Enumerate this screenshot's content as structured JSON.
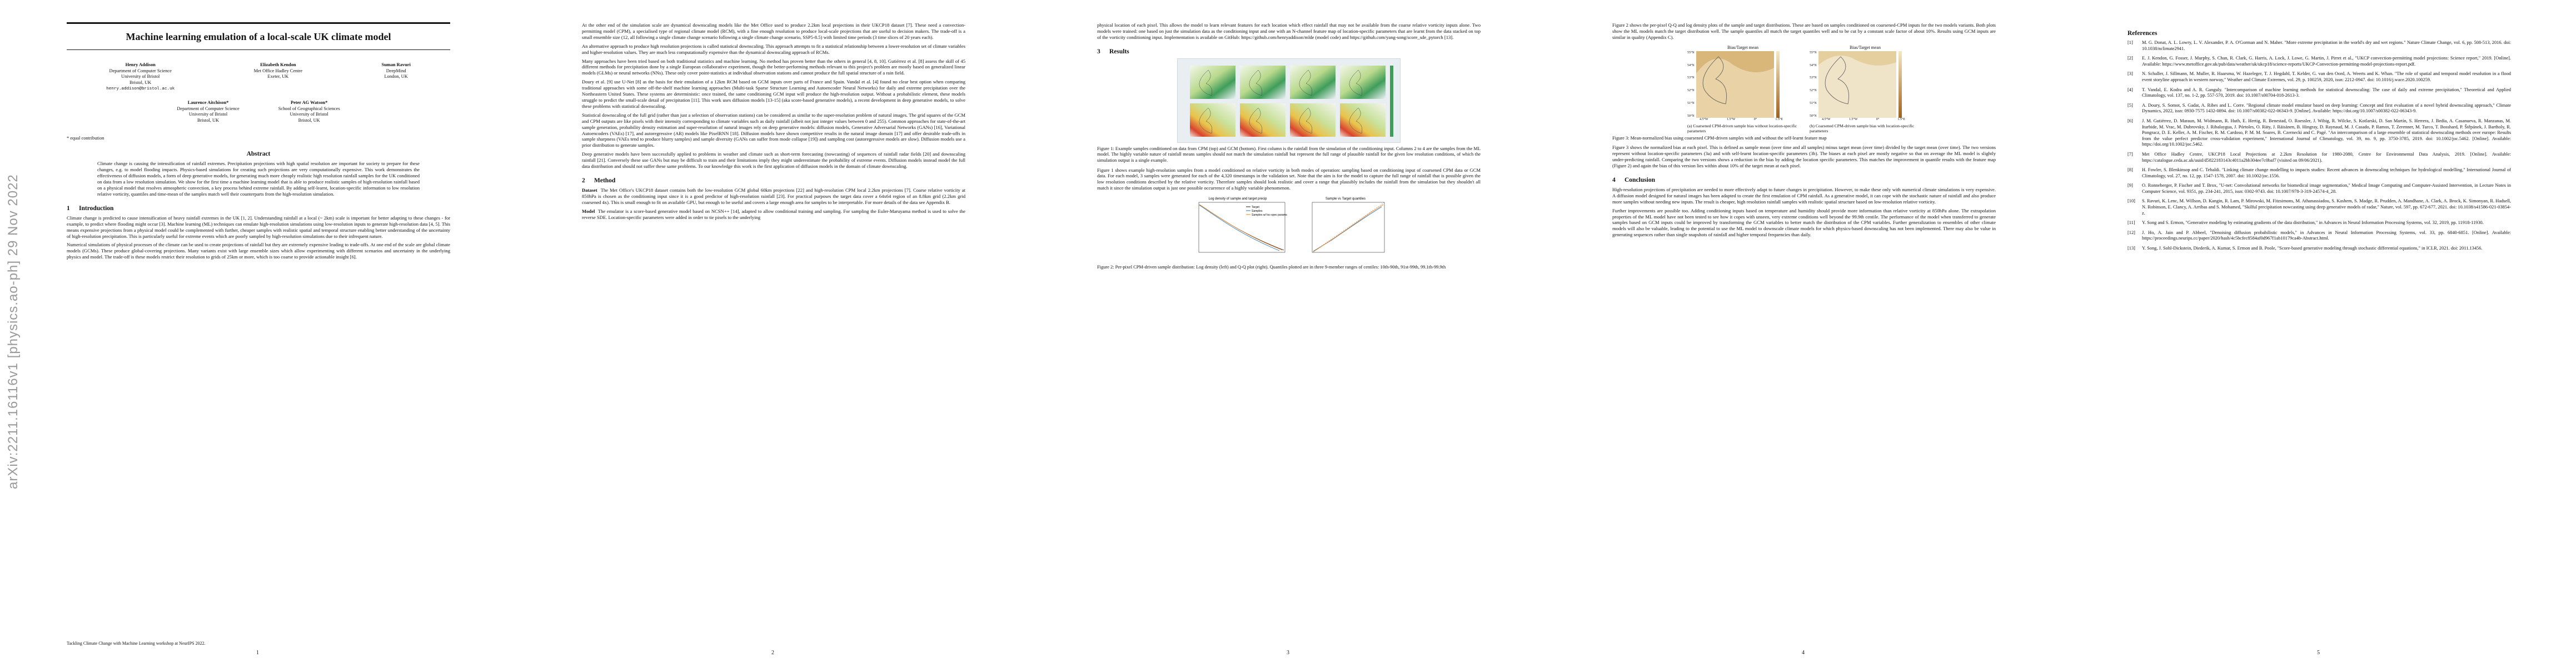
{
  "arxiv_stamp": "arXiv:2211.16116v1  [physics.ao-ph]  29 Nov 2022",
  "page1": {
    "title": "Machine learning emulation of a local-scale UK climate model",
    "authors_row1": [
      {
        "name": "Henry Addison",
        "line1": "Department of Computer Science",
        "line2": "University of Bristol",
        "line3": "Bristol, UK",
        "line4": "henry.addison@bristol.ac.uk"
      },
      {
        "name": "Elizabeth Kendon",
        "line1": "Met Office Hadley Centre",
        "line2": "Exeter, UK",
        "line3": "",
        "line4": ""
      },
      {
        "name": "Suman Ravuri",
        "line1": "DeepMind",
        "line2": "London, UK",
        "line3": "",
        "line4": ""
      }
    ],
    "authors_row2": [
      {
        "name": "Laurence Aitchison*",
        "line1": "Department of Computer Science",
        "line2": "University of Bristol",
        "line3": "Bristol, UK"
      },
      {
        "name": "Peter AG Watson*",
        "line1": "School of Geographical Sciences",
        "line2": "University of Bristol",
        "line3": "Bristol, UK"
      }
    ],
    "equal_contribution": "* equal contribution",
    "abstract_heading": "Abstract",
    "abstract": "Climate change is causing the intensification of rainfall extremes. Precipitation projections with high spatial resolution are important for society to prepare for these changes, e.g. to model flooding impacts. Physics-based simulations for creating such projections are very computationally expensive. This work demonstrates the effectiveness of diffusion models, a form of deep generative models, for generating much more cheaply realistic high resolution rainfall samples for the UK conditioned on data from a low resolution simulation. We show for the first time a machine learning model that is able to produce realistic samples of high-resolution rainfall based on a physical model that resolves atmospheric convection, a key process behind extreme rainfall. By adding self-learnt, location-specific information to low resolution relative vorticity, quantiles and time-mean of the samples match well their counterparts from the high-resolution simulation.",
    "intro_num": "1",
    "intro_heading": "Introduction",
    "intro_p1": "Climate change is predicted to cause intensification of heavy rainfall extremes in the UK [1, 2]. Understanding rainfall at a local (~ 2km) scale is important for better adapting to these changes - for example, to predict where flooding might occur [3]. Machine learning (ML) techniques can emulate high-resolution simulations using low-resolution inputs to generate high-resolution data [4, 5]. This means expensive projections from a physical model could be complemented with further, cheaper samples with realistic spatial and temporal structure enabling better understanding of the uncertainty of high-resolution precipitation. This is particularly useful for extreme events which are poorly sampled by high-resolution simulations due to their infrequent nature.",
    "intro_p2": "Numerical simulations of physical processes of the climate can be used to create projections of rainfall but they are extremely expensive leading to trade-offs. At one end of the scale are global climate models (GCMs). These produce global-covering projections. Many variants exist with large ensemble sizes which allow experimenting with different scenarios and uncertainty in the underlying physics and model. The trade-off is these models restrict their resolution to grids of 25km or more, which is too coarse to provide actionable insight [6].",
    "footer": "Tackling Climate Change with Machine Learning workshop at NeurIPS 2022.",
    "page_number": "1"
  },
  "page2": {
    "p1": "At the other end of the simulation scale are dynamical downscaling models like the Met Office used to produce 2.2km local projections in their UKCP18 dataset [7]. These need a convection-permitting model (CPM), a specialised type of regional climate model (RCM), with a fine enough resolution to produce local-scale projections that are useful to decision makers. The trade-off is a small ensemble size (12, all following a single climate change scenario following a single climate change scenario, SSP5-8.5) with limited time periods (3 time slices of 20 years each).",
    "p2": "An alternative approach to produce high resolution projections is called statistical downscaling. This approach attempts to fit a statistical relationship between a lower-resolution set of climate variables and higher-resolution values. They are much less computationally expensive than the dynamical downscaling approach of RCMs.",
    "p3": "Many approaches have been tried based on both traditional statistics and machine learning. No method has proven better than the others in general [4, 8, 10]. Gutiérrez et al. [8] assess the skill of 45 different methods for precipitation done by a single European collaborative experiment, though the better-performing methods relevant to this project's problem are mostly based on generalized linear models (GLMs) or neural networks (NNs). These only cover point-statistics at individual observation stations and cannot produce the full spatial structure of a rain field.",
    "p4": "Doury et al. [9] use U-Net [8] as the basis for their emulation of a 12km RCM based on GCM inputs over parts of France and Spain. Vandal et al. [4] found no clear best option when comparing traditional approaches with some off-the-shelf machine learning approaches (Multi-task Sparse Structure Learning and Autoencoder Neural Networks) for daily and extreme precipitation over the Northeastern United States. These systems are deterministic: once trained, the same conditioning GCM input will produce the high-resolution output. Without a probabilistic element, these models struggle to predict the small-scale detail of precipitation [11]. This work uses diffusion models [13-15] (aka score-based generative models), a recent development in deep generative models, to solve these problems with statistical downscaling.",
    "p5": "Statistical downscaling of the full grid (rather than just a selection of observation stations) can be considered as similar to the super-resolution problem of natural images. The grid squares of the GCM and CPM outputs are like pixels with their intensity corresponding to climate variables such as daily rainfall (albeit not just integer values between 0 and 255). Common approaches for state-of-the-art sample generation, probability density estimation and super-resolution of natural images rely on deep generative models: diffusion models, Generative Adversarial Networks (GANs) [16], Variational Autoencoders (VAEs) [17], and autoregressive (AR) models like PixelRNN [18]. Diffusion models have shown competitive results in the natural image domain [17] and offer desirable trade-offs in sample sharpness (VAEs tend to produce blurry samples) and sample diversity (GANs can suffer from mode collapse [19]) and sampling cost (autoregressive models are slow). Diffusion models use a prior distribution to generate samples.",
    "p6": "Deep generative models have been successfully applied to problems in weather and climate such as short-term forecasting (nowcasting) of sequences of rainfall radar fields [20] and downscaling rainfall [21]. Conversely these use GANs but may be difficult to train and their limitations imply they might underestimate the probability of extreme events. Diffusion models instead model the full data distribution and should not suffer these same problems. To our knowledge this work is the first application of diffusion models in the domain of climate downscaling.",
    "method_num": "2",
    "method_heading": "Method",
    "p7_label": "Dataset",
    "p7": "The Met Office's UKCP18 dataset contains both the low-resolution GCM global 60km projections [22] and high-resolution CPM local 2.2km projections [7]. Coarse relative vorticity at 850hPa is chosen as the conditioning input since it is a good predictor of high-resolution rainfall [23]. For practical purposes the target data cover a 64x64 region of an 8.8km grid (2.2km grid coarsened 4x). This is small enough to fit on available GPU, but enough to be useful and covers a large enough area for samples to be interpretable. For more details of the data see Appendix B.",
    "p8_label": "Model",
    "p8": "The emulator is a score-based generative model based on NCSN++ [14], adapted to allow conditional training and sampling. For sampling the Euler-Maruyama method is used to solve the reverse SDE. Location-specific parameters were added in order to tie pixels to the underlying",
    "page_number": "2"
  },
  "page3": {
    "p1": "physical location of each pixel. This allows the model to learn relevant features for each location which effect rainfall that may not be available from the coarse relative vorticity inputs alone. Two models were trained: one based on just the simulation data as the conditioning input and one with an N-channel feature map of location-specific parameters that are learnt from the data stacked on top of the vorticity conditioning input. Implementation is available on GitHub: https://github.com/henryaddison/mlde (model code) and https://github.com/yang-song/score_sde_pytorch [13].",
    "results_num": "3",
    "results_heading": "Results",
    "fig1_caption": "Figure 1: Example samples conditioned on data from CPM (top) and GCM (bottom). First column is the rainfall from the simulation of the conditioning input. Columns 2 to 4 are the samples from the ML model. The highly variable nature of rainfall means samples should not match the simulation rainfall but represent the full range of plausible rainfall for the given low resolution conditions, of which the simulation output is a single example.",
    "p2": "Figure 1 shows example high-resolution samples from a model conditioned on relative vorticity in both modes of operation: sampling based on conditioning input of coarsened CPM data or GCM data. For each model, 3 samples were generated for each of the 4,320 timestamps in the validation set. Note that the aim is for the model to capture the full range of rainfall that is possible given the low resolution conditions described by the relative vorticity. Therefore samples should look realistic and cover a range that plausibly includes the rainfall from the simulation but they shouldn't all match it since the simulation output is just one possible occurrence of a highly variable phenomenon.",
    "fig2_left_title": "Log density of sample and target precip",
    "fig2_right_title": "Sample vs Target quantiles",
    "fig2_left_legend": [
      "Target",
      "Samples",
      "Samples w/ loc-spec params"
    ],
    "fig2_caption": "Figure 2: Per-pixel CPM-driven sample distribution: Log density (left) and Q-Q plot (right). Quantiles plotted are in three 9-member ranges of centiles: 10th-90th, 91st-99th, 99.1th-99.9th",
    "page_number": "3"
  },
  "page4": {
    "p1": "Figure 2 shows the per-pixel Q-Q and log density plots of the sample and target distributions. These are based on samples conditioned on coarsened-CPM inputs for the two models variants. Both plots show the ML models match the target distribution well. The sample quantiles all match the target quantiles well and to be cut by a constant scale factor of about 10%. Results using GCM inputs are similar in quality (Appendix C).",
    "fig3_title_a": "Bias/Target mean",
    "fig3_title_b": "Bias/Target mean",
    "fig3_lat_ticks": [
      "55°N",
      "54°N",
      "53°N",
      "52°N",
      "51°N",
      "50°N"
    ],
    "fig3_lon_ticks": [
      "4.5°W",
      "1.5°W",
      "0°",
      "1.5°E"
    ],
    "fig3_sub_a": "(a) Coarsened CPM-driven sample bias without location-specific parameters",
    "fig3_sub_b": "(b) Coarsened CPM-driven sample bias with location-specific parameters",
    "fig3_caption": "Figure 3: Mean-normalized bias using coarsened CPM-driven samples with and without the self-learnt feature map",
    "p2": "Figure 3 shows the normalized bias at each pixel. This is defined as sample mean (over time and all samples) minus target mean (over time) divided by the target mean (over time). The two versions represent without location-specific parameters (3a) and with self-learnt location-specific parameters (3b). The biases at each pixel are mostly negative so that on average the ML model is slightly under-predicting rainfall. Comparing the two versions shows a reduction in the bias by adding the location specific parameters. This matches the improvement in quantile results with the feature map (Figure 2) and again the bias of this version lies within about 10% of the target mean at each pixel.",
    "conclusion_num": "4",
    "conclusion_heading": "Conclusion",
    "p3": "High-resolution projections of precipitation are needed to more effectively adapt to future changes in precipitation. However, to make these only with numerical climate simulations is very expensive. A diffusion model designed for natural images has been adapted to create the first emulation of CPM rainfall. As a generative model, it can cope with the stochastic nature of rainfall and also produce more samples without needing new inputs. The result is cheaper, high resolution rainfall samples with realistic spatial structure based on low-resolution relative vorticity.",
    "p4": "Further improvements are possible too. Adding conditioning inputs based on temperature and humidity should provide more information than relative vorticity at 850hPa alone. The extrapolation properties of the ML model have not been tested to see how it copes with unseen, very extreme conditions well beyond the 99.9th centile. The performance of the model when transferred to generate samples based on GCM inputs could be improved by transforming the GCM variables to better match the distribution of the CPM variables. Further generalization to ensembles of other climate models will also be valuable, leading to the potential to use the ML model to downscale climate models for which physics-based downscaling has not been implemented. There may also be value in generating sequences rather than single snapshots of rainfall and higher temporal frequencies than daily.",
    "page_number": "4"
  },
  "page5": {
    "references_heading": "References",
    "refs": [
      {
        "n": "[1]",
        "text": "M. G. Donat, A. L. Lowry, L. V. Alexander, P. A. O'Gorman and N. Maher. \"More extreme precipitation in the world's dry and wet regions.\" Nature Climate Change, vol. 6, pp. 508-513, 2016. doi: 10.1038/nclimate2941."
      },
      {
        "n": "[2]",
        "text": "E. J. Kendon, G. Fosser, J. Murphy, S. Chan, R. Clark, G. Harris, A. Lock, J. Lowe, G. Martin, J. Pirret et al., \"UKCP convection-permitting model projections: Science report,\" 2019. [Online]. Available: https://www.metoffice.gov.uk/pub/data/weather/uk/ukcp18/science-reports/UKCP-Convection-permitting-model-projections-report.pdf."
      },
      {
        "n": "[3]",
        "text": "N. Schaller, J. Sillmann, M. Muller, R. Haarsma, W. Hazeleger, T. J. Hegdahl, T. Kelder, G. van den Oord, A. Weerts and K. Whan. \"The role of spatial and temporal model resolution in a flood event storyline approach in western norway,\" Weather and Climate Extremes, vol. 29, p. 100259, 2020, issn: 2212-0947. doi: 10.1016/j.wace.2020.100259."
      },
      {
        "n": "[4]",
        "text": "T. Vandal, E. Kodra and A. R. Ganguly. \"Intercomparison of machine learning methods for statistical downscaling: The case of daily and extreme precipitation,\" Theoretical and Applied Climatology, vol. 137, no. 1-2, pp. 557-570, 2019. doi: 10.1007/s00704-018-2613-3."
      },
      {
        "n": "[5]",
        "text": "A. Doury, S. Somot, S. Gadat, A. Ribes and L. Corre. \"Regional climate model emulator based on deep learning: Concept and first evaluation of a novel hybrid downscaling approach,\" Climate Dynamics, 2022, issn: 0930-7575 1432-0894. doi: 10.1007/s00382-022-06343-9. [Online]. Available: https://doi.org/10.1007/s00382-022-06343-9."
      },
      {
        "n": "[6]",
        "text": "J. M. Gutiérrez, D. Maraun, M. Widmann, R. Huth, E. Hertig, R. Benestad, O. Roessler, J. Wibig, R. Wilcke, S. Kotlarski, D. San Martín, S. Herrera, J. Bedia, A. Casanueva, R. Manzanas, M. Iturbide, M. Vrac, M. Dubrovsky, J. Ribalaygua, J. Pórtoles, O. Räty, J. Räisänen, B. Hingray, D. Raynaud, M. J. Casado, P. Ramos, T. Zerenner, M. Turco, T. Bosshard, P. Štěpánek, J. Bartholy, R. Pongracz, D. E. Keller, A. M. Fischer, R. M. Cardoso, P. M. M. Soares, B. Czernecki and C. Pagé. \"An intercomparison of a large ensemble of statistical downscaling methods over europe: Results from the value perfect predictor cross-validation experiment,\" International Journal of Climatology, vol. 39, no. 9, pp. 3750-3785, 2019. doi: 10.1002/joc.5462. [Online]. Available: https://doi.org/10.1002/joc.5462."
      },
      {
        "n": "[7]",
        "text": "Met Office Hadley Centre, UKCP18 Local Projections at 2.2km Resolution for 1980-2080, Centre for Environmental Data Analysis, 2019. [Online]. Available: https://catalogue.ceda.ac.uk/uuid/d5822183143c4011a2bb304ee7c0baf7 (visited on 09/06/2021)."
      },
      {
        "n": "[8]",
        "text": "H. Fowler, S. Blenkinsop and C. Tebaldi. \"Linking climate change modelling to impacts studies: Recent advances in downscaling techniques for hydrological modelling,\" International Journal of Climatology, vol. 27, no. 12, pp. 1547-1578, 2007. doi: 10.1002/joc.1556."
      },
      {
        "n": "[9]",
        "text": "O. Ronneberger, P. Fischer and T. Brox, \"U-net: Convolutional networks for biomedical image segmentation,\" Medical Image Computing and Computer-Assisted Intervention, in Lecture Notes in Computer Science, vol. 9351, pp. 234-241, 2015, issn: 0302-9743. doi: 10.1007/978-3-319-24574-4_28."
      },
      {
        "n": "[10]",
        "text": "S. Ravuri, K. Lenc, M. Willson, D. Kangin, R. Lam, P. Mirowski, M. Fitzsimons, M. Athanassiadou, S. Kashem, S. Madge, R. Prudden, A. Mandhane, A. Clark, A. Brock, K. Simonyan, R. Hadsell, N. Robinson, E. Clancy, A. Arribas and S. Mohamed, \"Skilful precipitation nowcasting using deep generative models of radar,\" Nature, vol. 597, pp. 672-677, 2021. doi: 10.1038/s41586-021-03854-z."
      },
      {
        "n": "[11]",
        "text": "Y. Song and S. Ermon, \"Generative modeling by estimating gradients of the data distribution,\" in Advances in Neural Information Processing Systems, vol. 32, 2019, pp. 11918-11930."
      },
      {
        "n": "[12]",
        "text": "J. Ho, A. Jain and P. Abbeel, \"Denoising diffusion probabilistic models,\" in Advances in Neural Information Processing Systems, vol. 33, pp. 6840-6851. [Online]. Available: https://proceedings.neurips.cc/paper/2020/hash/4c5bcfec8584af0d967f1ab10179ca4b-Abstract.html."
      },
      {
        "n": "[13]",
        "text": "Y. Song, J. Sohl-Dickstein, Diederik, A. Kumar, S. Ermon and B. Poole, \"Score-based generative modeling through stochastic differential equations,\" in ICLR, 2021. doi: 2011.13456."
      }
    ],
    "page_number": "5"
  }
}
